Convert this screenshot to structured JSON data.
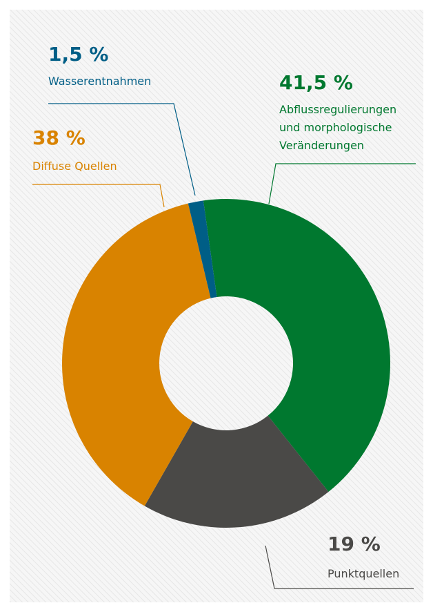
{
  "chart_data": {
    "type": "donut",
    "categories": [
      "Abflussregulierungen\nund morphologische\nVeränderungen",
      "Punktquellen",
      "Diffuse Quellen",
      "Wasserentnahmen"
    ],
    "values": [
      41.5,
      19,
      38,
      1.5
    ],
    "value_labels": [
      "41,5 %",
      "19 %",
      "38 %",
      "1,5 %"
    ],
    "colors": [
      "#00782f",
      "#4a4947",
      "#d98300",
      "#005e86"
    ]
  }
}
